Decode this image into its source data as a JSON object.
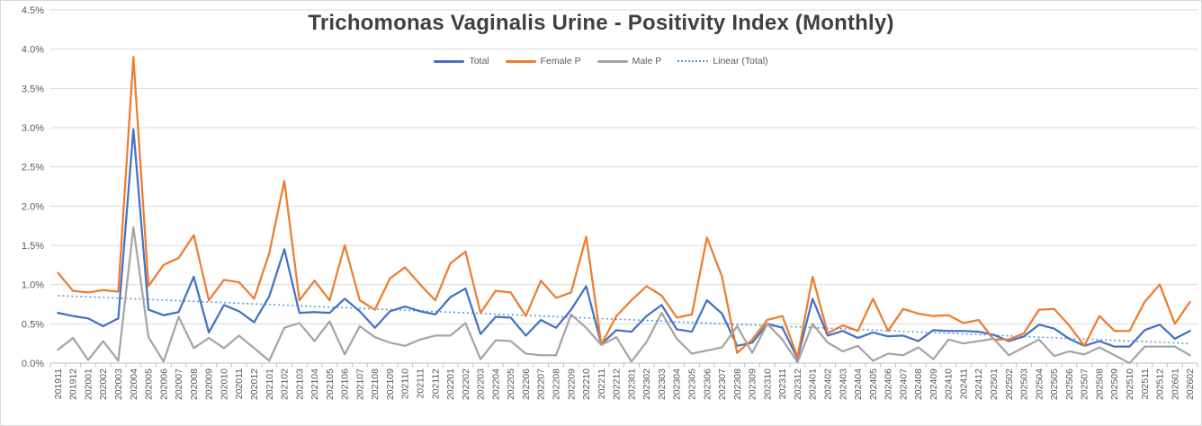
{
  "title": "Trichomonas Vaginalis Urine - Positivity Index (Monthly)",
  "legend": {
    "items": [
      {
        "label": "Total",
        "color": "#4472C4",
        "style": "solid"
      },
      {
        "label": "Female P",
        "color": "#ED7D31",
        "style": "solid"
      },
      {
        "label": "Male P",
        "color": "#A5A5A5",
        "style": "solid"
      },
      {
        "label": "Linear (Total)",
        "color": "#5B9BD5",
        "style": "dotted"
      }
    ]
  },
  "y_axis": {
    "tick_labels": [
      "4.5%",
      "4.0%",
      "3.5%",
      "3.0%",
      "2.5%",
      "2.0%",
      "1.5%",
      "1.0%",
      "0.5%",
      "0.0%"
    ]
  },
  "colors": {
    "grid": "#D9D9D9",
    "axis": "#BFBFBF",
    "tick_text": "#595959",
    "title_text": "#404040"
  },
  "chart_data": {
    "type": "line",
    "title": "Trichomonas Vaginalis Urine - Positivity Index (Monthly)",
    "xlabel": "",
    "ylabel": "",
    "ylim": [
      0,
      4.5
    ],
    "y_tick_step": 0.5,
    "y_unit": "percent",
    "grid": true,
    "legend_position": "top",
    "x": [
      "201911",
      "201912",
      "202001",
      "202002",
      "202003",
      "202004",
      "202005",
      "202006",
      "202007",
      "202008",
      "202009",
      "202010",
      "202011",
      "202012",
      "202101",
      "202102",
      "202103",
      "202104",
      "202105",
      "202106",
      "202107",
      "202108",
      "202109",
      "202110",
      "202111",
      "202112",
      "202201",
      "202202",
      "202203",
      "202204",
      "202205",
      "202206",
      "202207",
      "202208",
      "202209",
      "202210",
      "202211",
      "202212",
      "202301",
      "202302",
      "202303",
      "202304",
      "202305",
      "202306",
      "202307",
      "202308",
      "202309",
      "202310",
      "202311",
      "202312",
      "202401",
      "202402",
      "202403",
      "202404",
      "202405",
      "202406",
      "202407",
      "202408",
      "202409",
      "202410",
      "202411",
      "202412",
      "202501",
      "202502",
      "202503",
      "202504",
      "202505",
      "202506",
      "202507",
      "202508",
      "202509",
      "202510",
      "202511",
      "202512",
      "202601",
      "202602"
    ],
    "series": [
      {
        "name": "Total",
        "color": "#4472C4",
        "style": "solid",
        "values": [
          0.64,
          0.6,
          0.57,
          0.47,
          0.57,
          2.98,
          0.68,
          0.61,
          0.65,
          1.1,
          0.39,
          0.74,
          0.66,
          0.52,
          0.85,
          1.45,
          0.64,
          0.65,
          0.64,
          0.82,
          0.66,
          0.45,
          0.66,
          0.72,
          0.66,
          0.62,
          0.84,
          0.95,
          0.37,
          0.59,
          0.58,
          0.35,
          0.55,
          0.45,
          0.68,
          0.98,
          0.24,
          0.42,
          0.4,
          0.6,
          0.74,
          0.43,
          0.4,
          0.8,
          0.63,
          0.22,
          0.26,
          0.5,
          0.45,
          0.06,
          0.82,
          0.35,
          0.41,
          0.32,
          0.39,
          0.34,
          0.35,
          0.28,
          0.42,
          0.41,
          0.41,
          0.4,
          0.36,
          0.28,
          0.34,
          0.49,
          0.44,
          0.31,
          0.22,
          0.28,
          0.21,
          0.21,
          0.42,
          0.49,
          0.31,
          0.41
        ]
      },
      {
        "name": "Female P",
        "color": "#ED7D31",
        "style": "solid",
        "values": [
          1.15,
          0.92,
          0.9,
          0.93,
          0.91,
          3.9,
          0.98,
          1.25,
          1.34,
          1.63,
          0.8,
          1.06,
          1.03,
          0.82,
          1.4,
          2.32,
          0.8,
          1.05,
          0.8,
          1.5,
          0.8,
          0.68,
          1.08,
          1.22,
          1.0,
          0.8,
          1.27,
          1.42,
          0.64,
          0.92,
          0.9,
          0.6,
          1.05,
          0.83,
          0.9,
          1.61,
          0.24,
          0.6,
          0.8,
          0.98,
          0.86,
          0.58,
          0.62,
          1.6,
          1.1,
          0.13,
          0.3,
          0.55,
          0.6,
          0.08,
          1.1,
          0.38,
          0.48,
          0.41,
          0.82,
          0.41,
          0.69,
          0.63,
          0.6,
          0.61,
          0.51,
          0.55,
          0.3,
          0.3,
          0.38,
          0.68,
          0.69,
          0.48,
          0.22,
          0.6,
          0.41,
          0.41,
          0.78,
          1.0,
          0.5,
          0.78
        ]
      },
      {
        "name": "Male P",
        "color": "#A5A5A5",
        "style": "solid",
        "values": [
          0.17,
          0.32,
          0.04,
          0.28,
          0.03,
          1.73,
          0.33,
          0.02,
          0.59,
          0.19,
          0.32,
          0.19,
          0.35,
          0.19,
          0.03,
          0.45,
          0.51,
          0.28,
          0.53,
          0.11,
          0.47,
          0.33,
          0.26,
          0.22,
          0.3,
          0.35,
          0.35,
          0.51,
          0.05,
          0.29,
          0.28,
          0.12,
          0.1,
          0.1,
          0.62,
          0.45,
          0.23,
          0.33,
          0.02,
          0.27,
          0.64,
          0.31,
          0.12,
          0.16,
          0.2,
          0.47,
          0.13,
          0.5,
          0.3,
          0.01,
          0.5,
          0.26,
          0.15,
          0.22,
          0.03,
          0.12,
          0.1,
          0.2,
          0.05,
          0.3,
          0.25,
          0.28,
          0.31,
          0.1,
          0.2,
          0.3,
          0.09,
          0.15,
          0.11,
          0.2,
          0.1,
          0.0,
          0.21,
          0.21,
          0.21,
          0.1
        ]
      }
    ],
    "trendline": {
      "name": "Linear (Total)",
      "color": "#5B9BD5",
      "style": "dotted",
      "start_value": 0.86,
      "end_value": 0.25
    }
  }
}
